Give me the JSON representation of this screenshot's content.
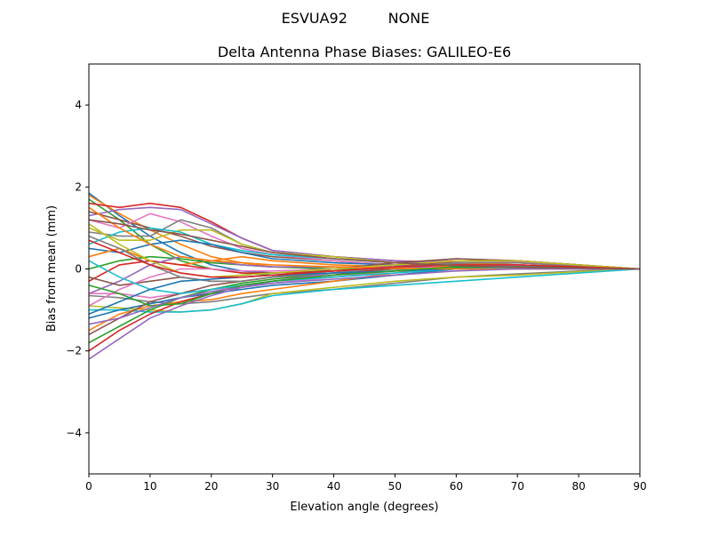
{
  "suptitle": "ESVUA92         NONE",
  "chart_data": {
    "type": "line",
    "title": "Delta Antenna Phase Biases: GALILEO-E6",
    "xlabel": "Elevation angle (degrees)",
    "ylabel": "Bias from mean (mm)",
    "xlim": [
      0,
      90
    ],
    "ylim": [
      -5,
      5
    ],
    "xticks": [
      0,
      10,
      20,
      30,
      40,
      50,
      60,
      70,
      80,
      90
    ],
    "yticks": [
      -4,
      -2,
      0,
      2,
      4
    ],
    "ytick_labels": [
      "−4",
      "−2",
      "0",
      "2",
      "4"
    ],
    "grid": false,
    "colors": [
      "#1f77b4",
      "#ff7f0e",
      "#2ca02c",
      "#d62728",
      "#9467bd",
      "#8c564b",
      "#e377c2",
      "#7f7f7f",
      "#bcbd22",
      "#17becf"
    ],
    "x": [
      0,
      5,
      10,
      15,
      20,
      25,
      30,
      40,
      50,
      60,
      70,
      80,
      90
    ],
    "series": [
      {
        "values": [
          1.85,
          1.3,
          0.8,
          0.4,
          0.1,
          -0.05,
          -0.1,
          -0.05,
          0.05,
          0.1,
          0.08,
          0.04,
          0
        ]
      },
      {
        "values": [
          1.8,
          1.35,
          0.95,
          0.6,
          0.3,
          0.15,
          0.05,
          0,
          0,
          0.02,
          0.02,
          0.01,
          0
        ]
      },
      {
        "values": [
          1.7,
          1.2,
          0.6,
          0.2,
          0,
          -0.1,
          -0.15,
          -0.1,
          0,
          0.05,
          0.05,
          0.03,
          0
        ]
      },
      {
        "values": [
          1.6,
          1.5,
          1.6,
          1.5,
          1.15,
          0.75,
          0.45,
          0.3,
          0.2,
          0.15,
          0.1,
          0.05,
          0
        ]
      },
      {
        "values": [
          1.3,
          1.45,
          1.5,
          1.45,
          1.1,
          0.75,
          0.45,
          0.3,
          0.2,
          0.12,
          0.08,
          0.04,
          0
        ]
      },
      {
        "values": [
          1.4,
          1.2,
          1.0,
          0.8,
          0.55,
          0.4,
          0.3,
          0.2,
          0.1,
          0.05,
          0.03,
          0.02,
          0
        ]
      },
      {
        "values": [
          1.2,
          1.0,
          1.35,
          1.15,
          0.8,
          0.5,
          0.35,
          0.2,
          0.1,
          0.05,
          0.03,
          0.02,
          0
        ]
      },
      {
        "values": [
          0.9,
          0.8,
          0.8,
          1.2,
          1.0,
          0.6,
          0.4,
          0.25,
          0.15,
          0.1,
          0.05,
          0.02,
          0
        ]
      },
      {
        "values": [
          1.0,
          0.7,
          0.7,
          0.95,
          0.95,
          0.6,
          0.4,
          0.3,
          0.15,
          0.08,
          0.04,
          0.02,
          0
        ]
      },
      {
        "values": [
          0.6,
          0.9,
          1.0,
          0.9,
          0.6,
          0.45,
          0.35,
          0.25,
          0.15,
          0.1,
          0.05,
          0.02,
          0
        ]
      },
      {
        "values": [
          0.5,
          0.4,
          0.6,
          0.7,
          0.6,
          0.4,
          0.25,
          0.15,
          0.1,
          0.05,
          0.03,
          0.01,
          0
        ]
      },
      {
        "values": [
          0.3,
          0.5,
          0.2,
          0.1,
          0.2,
          0.3,
          0.2,
          0.1,
          0.05,
          0.05,
          0.03,
          0.01,
          0
        ]
      },
      {
        "values": [
          0,
          0.2,
          0.3,
          0.25,
          0.15,
          0.1,
          0.05,
          0,
          0,
          0.02,
          0.02,
          0.01,
          0
        ]
      },
      {
        "values": [
          -0.3,
          0.1,
          0.2,
          0.1,
          0,
          -0.1,
          -0.1,
          -0.05,
          0,
          0.05,
          0.05,
          0.02,
          0
        ]
      },
      {
        "values": [
          -0.6,
          -0.3,
          0.1,
          0.3,
          0.2,
          0.1,
          0.05,
          0.05,
          0.05,
          0.05,
          0.03,
          0.01,
          0
        ]
      },
      {
        "values": [
          -0.2,
          -0.4,
          -0.3,
          -0.2,
          -0.3,
          -0.3,
          -0.2,
          -0.1,
          0,
          0.05,
          0.04,
          0.02,
          0
        ]
      },
      {
        "values": [
          -0.6,
          -0.6,
          -0.7,
          -0.6,
          -0.5,
          -0.45,
          -0.35,
          -0.2,
          -0.05,
          0.1,
          0.1,
          0.05,
          0
        ]
      },
      {
        "values": [
          -0.65,
          -0.7,
          -0.8,
          -0.85,
          -0.8,
          -0.7,
          -0.6,
          -0.5,
          -0.35,
          -0.2,
          -0.12,
          -0.05,
          0
        ]
      },
      {
        "values": [
          -0.9,
          -0.95,
          -1.0,
          -1.05,
          -1.0,
          -0.85,
          -0.6,
          -0.45,
          -0.3,
          -0.2,
          -0.15,
          -0.07,
          0
        ]
      },
      {
        "values": [
          -1.0,
          -1.0,
          -1.05,
          -1.05,
          -1.0,
          -0.85,
          -0.65,
          -0.5,
          -0.4,
          -0.3,
          -0.2,
          -0.1,
          0
        ]
      },
      {
        "values": [
          -1.2,
          -1.0,
          -0.85,
          -0.7,
          -0.6,
          -0.5,
          -0.4,
          -0.3,
          -0.15,
          0,
          0.05,
          0.03,
          0
        ]
      },
      {
        "values": [
          -1.5,
          -1.1,
          -0.9,
          -0.8,
          -0.75,
          -0.6,
          -0.5,
          -0.3,
          -0.1,
          0.1,
          0.15,
          0.08,
          0
        ]
      },
      {
        "values": [
          -1.8,
          -1.4,
          -1.0,
          -0.7,
          -0.5,
          -0.35,
          -0.25,
          -0.1,
          0.05,
          0.15,
          0.15,
          0.08,
          0
        ]
      },
      {
        "values": [
          -2.0,
          -1.5,
          -1.1,
          -0.8,
          -0.6,
          -0.4,
          -0.3,
          -0.15,
          0.05,
          0.2,
          0.2,
          0.1,
          0
        ]
      },
      {
        "values": [
          -2.2,
          -1.7,
          -1.2,
          -0.9,
          -0.65,
          -0.45,
          -0.3,
          -0.1,
          0.1,
          0.25,
          0.2,
          0.1,
          0
        ]
      },
      {
        "values": [
          -1.6,
          -1.2,
          -0.8,
          -0.6,
          -0.4,
          -0.3,
          -0.2,
          0,
          0.15,
          0.25,
          0.2,
          0.1,
          0
        ]
      },
      {
        "values": [
          -0.9,
          -0.5,
          -0.2,
          0,
          0,
          -0.05,
          -0.05,
          0,
          0.1,
          0.2,
          0.18,
          0.08,
          0
        ]
      },
      {
        "values": [
          0.8,
          0.5,
          0.1,
          -0.2,
          -0.3,
          -0.3,
          -0.2,
          -0.1,
          0.05,
          0.15,
          0.15,
          0.07,
          0
        ]
      },
      {
        "values": [
          1.1,
          0.6,
          0.2,
          -0.1,
          -0.2,
          -0.15,
          -0.1,
          0,
          0.1,
          0.2,
          0.2,
          0.1,
          0
        ]
      },
      {
        "values": [
          0.2,
          -0.2,
          -0.5,
          -0.6,
          -0.5,
          -0.4,
          -0.3,
          -0.2,
          -0.1,
          0,
          0.02,
          0.01,
          0
        ]
      },
      {
        "values": [
          -1.1,
          -0.8,
          -0.5,
          -0.3,
          -0.25,
          -0.2,
          -0.15,
          -0.1,
          -0.05,
          0,
          0,
          0,
          0
        ]
      },
      {
        "values": [
          1.5,
          1.0,
          0.6,
          0.3,
          0.2,
          0.15,
          0.1,
          0.05,
          0.02,
          0,
          0,
          0,
          0
        ]
      },
      {
        "values": [
          -0.4,
          -0.6,
          -0.9,
          -0.85,
          -0.6,
          -0.4,
          -0.3,
          -0.15,
          -0.05,
          0.05,
          0.05,
          0.02,
          0
        ]
      },
      {
        "values": [
          0.7,
          0.4,
          0.1,
          -0.1,
          -0.2,
          -0.2,
          -0.15,
          -0.05,
          0.05,
          0.1,
          0.1,
          0.05,
          0
        ]
      },
      {
        "values": [
          -1.35,
          -1.2,
          -0.95,
          -0.7,
          -0.55,
          -0.45,
          -0.35,
          -0.25,
          -0.15,
          -0.05,
          0,
          0,
          0
        ]
      },
      {
        "values": [
          1.2,
          1.1,
          0.95,
          0.85,
          0.7,
          0.55,
          0.4,
          0.25,
          0.15,
          0.08,
          0.04,
          0.02,
          0
        ]
      }
    ]
  }
}
